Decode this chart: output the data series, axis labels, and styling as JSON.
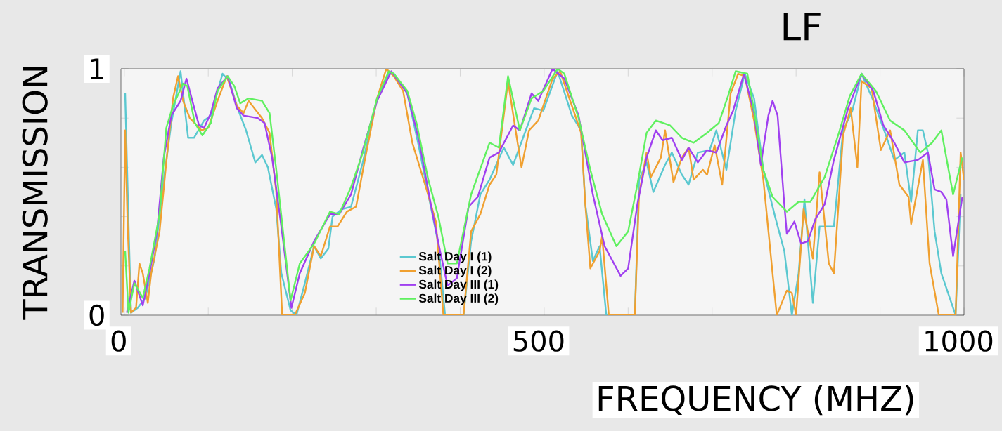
{
  "chart_data": {
    "type": "line",
    "title": "LF",
    "xlabel": "FREQUENCY (MHZ)",
    "ylabel": "TRANSMISSION",
    "xlim": [
      -4,
      1000
    ],
    "ylim": [
      0,
      1
    ],
    "xticks": [
      0,
      {
        "value": 100,
        "label": null
      },
      {
        "value": 200,
        "label": null
      },
      {
        "value": 300,
        "label": null
      },
      {
        "value": 400,
        "label": null
      },
      500,
      {
        "value": 600,
        "label": null
      },
      {
        "value": 700,
        "label": null
      },
      {
        "value": 800,
        "label": null
      },
      {
        "value": 900,
        "label": null
      },
      1000
    ],
    "yticks": [
      0,
      {
        "value": 0.2,
        "label": null
      },
      {
        "value": 0.4,
        "label": null
      },
      {
        "value": 0.6,
        "label": null
      },
      {
        "value": 0.8,
        "label": null
      },
      1
    ],
    "legend": "bottom",
    "series": [
      {
        "name": "Salt Day I (1)",
        "color": "#5bc8d0",
        "x": [
          1,
          5,
          8,
          16,
          25,
          36,
          47,
          56,
          67,
          76,
          83,
          95,
          103,
          117,
          125,
          136,
          145,
          156,
          164,
          171,
          181,
          187,
          198,
          205,
          215,
          226,
          234,
          243,
          248,
          259,
          270,
          284,
          301,
          315,
          321,
          337,
          351,
          362,
          374,
          382,
          404,
          413,
          424,
          435,
          452,
          463,
          477,
          488,
          499,
          516,
          533,
          544,
          549,
          558,
          566,
          574,
          608,
          613,
          622,
          630,
          644,
          652,
          664,
          672,
          683,
          697,
          705,
          717,
          728,
          739,
          750,
          761,
          775,
          786,
          795,
          803,
          810,
          820,
          828,
          837,
          845,
          856,
          867,
          878,
          892,
          906,
          917,
          929,
          937,
          945,
          951,
          957,
          965,
          973,
          990,
          996
        ],
        "values": [
          0.9,
          0.38,
          0.01,
          0.03,
          0.07,
          0.23,
          0.55,
          0.78,
          0.99,
          0.72,
          0.72,
          0.79,
          0.81,
          0.98,
          0.95,
          0.83,
          0.75,
          0.62,
          0.65,
          0.6,
          0.43,
          0.17,
          0.02,
          0,
          0.13,
          0.28,
          0.23,
          0.27,
          0.4,
          0.43,
          0.44,
          0.62,
          0.88,
          0.98,
          0.98,
          0.9,
          0.68,
          0.49,
          0.29,
          0,
          0,
          0.3,
          0.49,
          0.55,
          0.68,
          0.61,
          0.74,
          0.84,
          0.83,
          0.99,
          0.81,
          0.75,
          0.45,
          0.22,
          0.28,
          0,
          0,
          0.55,
          0.62,
          0.5,
          0.61,
          0.66,
          0.57,
          0.53,
          0.66,
          0.67,
          0.75,
          0.59,
          0.83,
          0.98,
          0.88,
          0.59,
          0.4,
          0.26,
          0,
          0.17,
          0.47,
          0.05,
          0.36,
          0.36,
          0.36,
          0.75,
          0.83,
          0.98,
          0.87,
          0.74,
          0.63,
          0.66,
          0.46,
          0.75,
          0.75,
          0.66,
          0.34,
          0.17,
          0,
          0.49
        ]
      },
      {
        "name": "Salt Day I (2)",
        "color": "#f0a030",
        "x": [
          -2,
          1,
          4,
          8,
          14,
          18,
          22,
          28,
          32,
          42,
          50,
          58,
          64,
          70,
          78,
          92,
          100,
          111,
          122,
          134,
          142,
          148,
          164,
          173,
          181,
          188,
          203,
          215,
          226,
          234,
          245,
          254,
          265,
          276,
          287,
          301,
          312,
          321,
          332,
          343,
          360,
          371,
          380,
          404,
          413,
          424,
          435,
          443,
          457,
          466,
          473,
          482,
          493,
          510,
          519,
          533,
          544,
          549,
          555,
          566,
          569,
          577,
          608,
          613,
          622,
          627,
          639,
          644,
          654,
          664,
          672,
          678,
          689,
          694,
          703,
          712,
          722,
          731,
          739,
          750,
          761,
          772,
          777,
          789,
          795,
          800,
          809,
          820,
          828,
          839,
          845,
          856,
          865,
          873,
          878,
          890,
          901,
          912,
          923,
          934,
          937,
          951,
          959,
          970,
          990,
          996,
          1000
        ],
        "values": [
          0.01,
          0.75,
          0.36,
          0.01,
          0.03,
          0.21,
          0.17,
          0.05,
          0.17,
          0.34,
          0.62,
          0.88,
          0.97,
          0.87,
          0.8,
          0.75,
          0.76,
          0.87,
          0.97,
          0.85,
          0.82,
          0.87,
          0.8,
          0.74,
          0.5,
          0,
          0,
          0.09,
          0.28,
          0.24,
          0.36,
          0.36,
          0.42,
          0.44,
          0.64,
          0.88,
          1,
          0.97,
          0.91,
          0.7,
          0.51,
          0.38,
          0,
          0,
          0.34,
          0.41,
          0.53,
          0.57,
          0.95,
          0.75,
          0.6,
          0.75,
          0.79,
          0.96,
          0.99,
          0.85,
          0.74,
          0.45,
          0.19,
          0.26,
          0.32,
          0,
          0,
          0.49,
          0.66,
          0.56,
          0.64,
          0.75,
          0.54,
          0.64,
          0.68,
          0.55,
          0.59,
          0.57,
          0.69,
          0.53,
          0.9,
          0.98,
          0.97,
          0.79,
          0.55,
          0.17,
          0,
          0.1,
          0.09,
          0,
          0.43,
          0.23,
          0.58,
          0.21,
          0.17,
          0.73,
          0.84,
          0.6,
          0.95,
          0.92,
          0.67,
          0.75,
          0.53,
          0.48,
          0.37,
          0.63,
          0.21,
          0,
          0,
          0.66,
          0.55
        ]
      },
      {
        "name": "Salt Day III (1)",
        "color": "#a040f0",
        "x": [
          3,
          12,
          22,
          30,
          39,
          47,
          56,
          67,
          74,
          81,
          89,
          95,
          103,
          111,
          123,
          134,
          142,
          159,
          167,
          176,
          187,
          199,
          209,
          226,
          245,
          256,
          270,
          284,
          301,
          318,
          337,
          351,
          365,
          376,
          385,
          396,
          410,
          421,
          435,
          446,
          463,
          471,
          485,
          493,
          510,
          524,
          541,
          558,
          572,
          591,
          600,
          611,
          622,
          633,
          641,
          652,
          664,
          672,
          683,
          694,
          705,
          717,
          725,
          738,
          750,
          758,
          767,
          772,
          778,
          786,
          789,
          798,
          806,
          814,
          823,
          834,
          845,
          862,
          878,
          892,
          904,
          917,
          929,
          945,
          957,
          965,
          973,
          979,
          987,
          998
        ],
        "values": [
          0.01,
          0.14,
          0.04,
          0.17,
          0.34,
          0.64,
          0.81,
          0.87,
          0.96,
          0.87,
          0.77,
          0.76,
          0.82,
          0.92,
          0.97,
          0.84,
          0.81,
          0.8,
          0.78,
          0.64,
          0.36,
          0.03,
          0.17,
          0.3,
          0.41,
          0.41,
          0.49,
          0.67,
          0.87,
          0.99,
          0.9,
          0.71,
          0.45,
          0.26,
          0.12,
          0.15,
          0.44,
          0.48,
          0.64,
          0.66,
          0.77,
          0.75,
          0.9,
          0.87,
          1,
          0.96,
          0.81,
          0.49,
          0.28,
          0.16,
          0.19,
          0.45,
          0.64,
          0.75,
          0.71,
          0.72,
          0.63,
          0.68,
          0.62,
          0.67,
          0.66,
          0.77,
          0.83,
          0.98,
          0.82,
          0.61,
          0.81,
          0.87,
          0.81,
          0.45,
          0.33,
          0.38,
          0.29,
          0.3,
          0.39,
          0.45,
          0.63,
          0.84,
          0.98,
          0.91,
          0.77,
          0.7,
          0.62,
          0.63,
          0.66,
          0.51,
          0.5,
          0.47,
          0.24,
          0.48
        ]
      },
      {
        "name": "Salt Day III (2)",
        "color": "#60f060",
        "x": [
          1,
          5,
          12,
          22,
          30,
          42,
          50,
          58,
          70,
          75,
          84,
          93,
          103,
          111,
          123,
          131,
          138,
          148,
          164,
          173,
          181,
          190,
          198,
          209,
          226,
          245,
          256,
          270,
          284,
          301,
          315,
          321,
          337,
          348,
          362,
          374,
          385,
          396,
          413,
          435,
          446,
          457,
          471,
          485,
          499,
          516,
          524,
          541,
          555,
          569,
          586,
          600,
          611,
          622,
          633,
          650,
          664,
          678,
          694,
          708,
          719,
          728,
          742,
          750,
          761,
          772,
          789,
          803,
          817,
          834,
          851,
          864,
          878,
          895,
          912,
          929,
          948,
          962,
          973,
          987,
          998
        ],
        "values": [
          0.26,
          0.01,
          0.13,
          0.07,
          0.19,
          0.41,
          0.76,
          0.85,
          0.94,
          0.93,
          0.78,
          0.73,
          0.78,
          0.91,
          0.97,
          0.93,
          0.86,
          0.88,
          0.87,
          0.82,
          0.59,
          0.31,
          0.06,
          0.21,
          0.29,
          0.42,
          0.41,
          0.52,
          0.66,
          0.88,
          0.99,
          0.98,
          0.91,
          0.78,
          0.55,
          0.4,
          0.21,
          0.21,
          0.49,
          0.7,
          0.68,
          0.97,
          0.75,
          0.88,
          0.91,
          1,
          0.98,
          0.8,
          0.59,
          0.41,
          0.28,
          0.34,
          0.53,
          0.74,
          0.79,
          0.77,
          0.72,
          0.7,
          0.74,
          0.78,
          0.89,
          0.99,
          0.98,
          0.83,
          0.59,
          0.48,
          0.42,
          0.46,
          0.46,
          0.56,
          0.74,
          0.89,
          0.98,
          0.91,
          0.79,
          0.75,
          0.66,
          0.7,
          0.75,
          0.49,
          0.64
        ]
      }
    ]
  }
}
